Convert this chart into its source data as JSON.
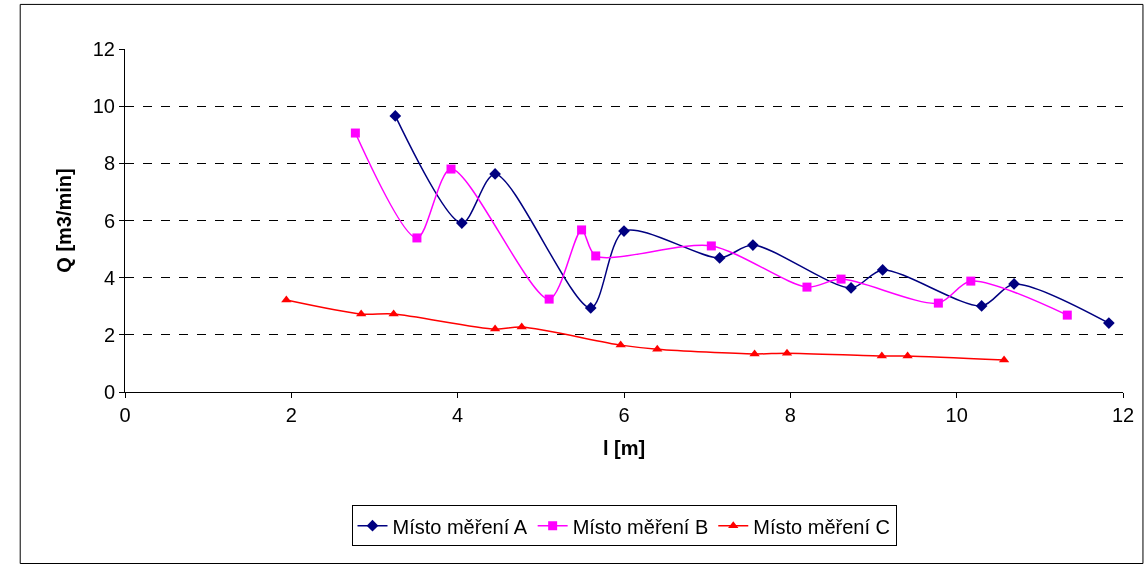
{
  "chart_data": {
    "type": "line",
    "xlabel": "l [m]",
    "ylabel": "Q [m3/min]",
    "xlim": [
      0,
      12
    ],
    "xticks": [
      0,
      2,
      4,
      6,
      8,
      10,
      12
    ],
    "ylim": [
      0,
      12
    ],
    "yticks": [
      0,
      2,
      4,
      6,
      8,
      10,
      12
    ],
    "grid": "y",
    "legend": "bottom",
    "line_style": "solid",
    "series": [
      {
        "name": "Místo měření A",
        "color": "#000080",
        "marker": "diamond",
        "x": [
          3.25,
          4.05,
          4.45,
          5.6,
          6.0,
          7.15,
          7.55,
          8.73,
          9.11,
          10.3,
          10.69,
          11.83
        ],
        "values": [
          9.66,
          5.91,
          7.63,
          2.94,
          5.63,
          4.69,
          5.14,
          3.64,
          4.27,
          3.01,
          3.78,
          2.41
        ]
      },
      {
        "name": "Místo měření B",
        "color": "#ff00ff",
        "marker": "square",
        "x": [
          2.77,
          3.51,
          3.92,
          5.1,
          5.49,
          5.66,
          7.05,
          8.2,
          8.61,
          9.78,
          10.17,
          11.33
        ],
        "values": [
          9.06,
          5.39,
          7.8,
          3.25,
          5.67,
          4.76,
          5.11,
          3.67,
          3.95,
          3.11,
          3.88,
          2.69
        ]
      },
      {
        "name": "Místo měření C",
        "color": "#ff0000",
        "marker": "triangle",
        "x": [
          1.94,
          2.84,
          3.23,
          4.45,
          4.77,
          5.96,
          6.4,
          7.57,
          7.96,
          9.1,
          9.41,
          10.57
        ],
        "values": [
          3.22,
          2.73,
          2.73,
          2.2,
          2.27,
          1.64,
          1.5,
          1.33,
          1.36,
          1.26,
          1.26,
          1.12
        ]
      }
    ]
  }
}
